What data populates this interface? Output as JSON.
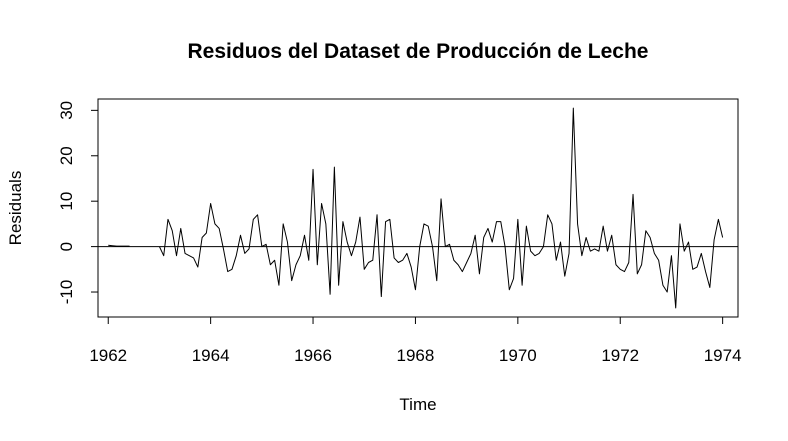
{
  "chart_data": {
    "type": "line",
    "title": "Residuos del Dataset de Producción de Leche",
    "xlabel": "Time",
    "ylabel": "Residuals",
    "xlim": [
      1961.8,
      1974.3
    ],
    "ylim": [
      -15.5,
      32.5
    ],
    "x_ticks": [
      1962,
      1964,
      1966,
      1968,
      1970,
      1972,
      1974
    ],
    "y_ticks": [
      -10,
      0,
      10,
      20,
      30
    ],
    "grid": false,
    "reference_line": 0,
    "line_color": "#000000",
    "series": [
      {
        "start": 1962.0,
        "frequency": 12,
        "values": [
          0.3,
          0.2,
          0.1,
          0.1,
          0.1,
          0.1,
          null,
          null,
          null,
          null,
          null,
          null,
          0.0,
          -2.0,
          6.0,
          3.5,
          -2.0,
          4.0,
          -1.5,
          -2.0,
          -2.5,
          -4.5,
          2.0,
          3.0,
          9.5,
          5.0,
          4.0,
          -0.5,
          -5.5,
          -5.0,
          -2.0,
          2.5,
          -1.5,
          -0.5,
          6.0,
          7.0,
          0.0,
          0.5,
          -4.0,
          -3.0,
          -8.5,
          5.0,
          1.0,
          -7.5,
          -4.0,
          -2.0,
          2.5,
          -3.0,
          17.0,
          -4.0,
          9.5,
          5.0,
          -10.5,
          17.5,
          -8.5,
          5.5,
          1.0,
          -2.0,
          1.0,
          6.5,
          -5.0,
          -3.5,
          -3.0,
          7.0,
          -11.0,
          5.5,
          6.0,
          -2.5,
          -3.5,
          -3.0,
          -1.5,
          -4.5,
          -9.5,
          0.0,
          5.0,
          4.5,
          0.0,
          -7.5,
          10.5,
          0.0,
          0.5,
          -3.0,
          -4.0,
          -5.5,
          -3.5,
          -1.5,
          2.5,
          -6.0,
          2.0,
          4.0,
          1.0,
          5.5,
          5.5,
          0.0,
          -9.5,
          -7.0,
          6.0,
          -8.5,
          4.5,
          -1.0,
          -2.0,
          -1.5,
          0.0,
          7.0,
          5.0,
          -3.0,
          1.0,
          -6.5,
          -1.5,
          30.5,
          5.0,
          -2.0,
          2.0,
          -1.0,
          -0.5,
          -1.0,
          4.5,
          -1.0,
          2.5,
          -4.0,
          -5.0,
          -5.5,
          -3.5,
          11.5,
          -6.0,
          -4.0,
          3.5,
          2.0,
          -1.5,
          -3.0,
          -8.5,
          -10.0,
          -2.0,
          -13.5,
          5.0,
          -1.0,
          1.0,
          -5.0,
          -4.5,
          -1.5,
          -5.5,
          -9.0,
          1.5,
          6.0,
          2.0
        ]
      }
    ]
  }
}
